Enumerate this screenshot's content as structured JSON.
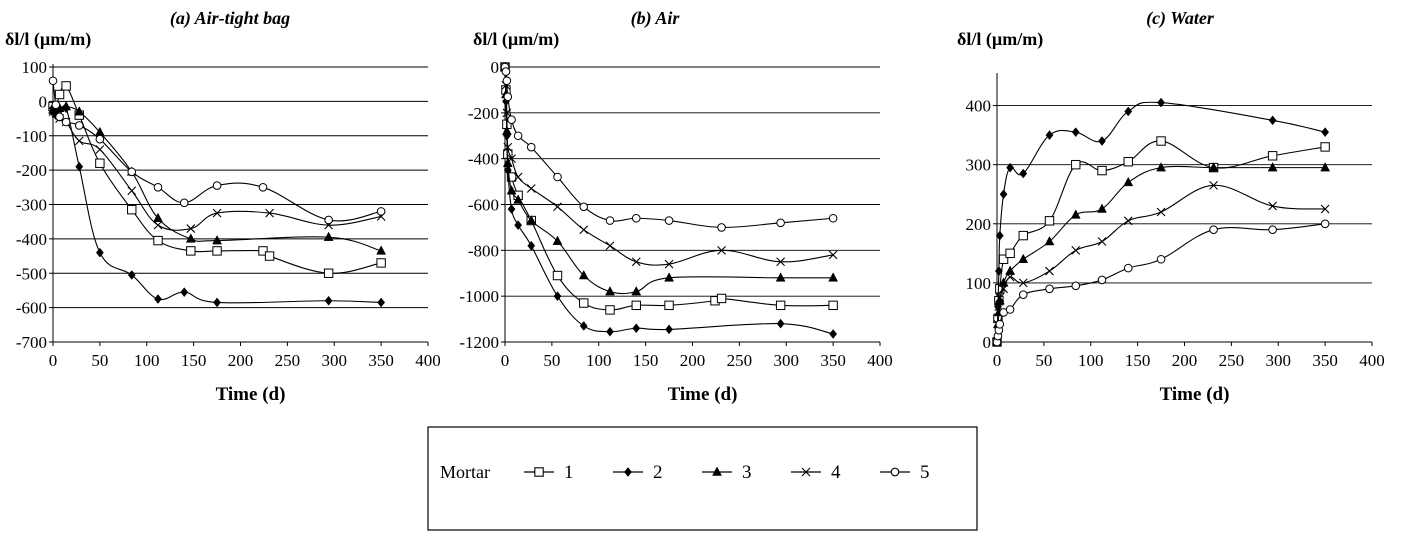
{
  "chart_data": [
    {
      "type": "line",
      "title": "(a) Air-tight bag",
      "ylabel": "δl/l (µm/m)",
      "xlabel": "Time (d)",
      "xlim": [
        0,
        400
      ],
      "ylim": [
        -700,
        100
      ],
      "xticks": [
        0,
        50,
        100,
        150,
        200,
        250,
        300,
        350,
        400
      ],
      "yticks": [
        -700,
        -600,
        -500,
        -400,
        -300,
        -200,
        -100,
        0,
        100
      ],
      "grid": "horizontal",
      "series": [
        {
          "name": "1",
          "marker": "square",
          "x": [
            0,
            3,
            7,
            14,
            28,
            50,
            84,
            112,
            147,
            175,
            224,
            231,
            294,
            350
          ],
          "y": [
            -15,
            -25,
            20,
            45,
            -40,
            -180,
            -315,
            -405,
            -435,
            -435,
            -435,
            -450,
            -500,
            -470
          ]
        },
        {
          "name": "2",
          "marker": "diamond",
          "x": [
            0,
            3,
            7,
            14,
            28,
            50,
            84,
            112,
            140,
            175,
            294,
            350
          ],
          "y": [
            -20,
            -40,
            -45,
            -20,
            -190,
            -440,
            -505,
            -575,
            -555,
            -585,
            -580,
            -585
          ]
        },
        {
          "name": "3",
          "marker": "triangle",
          "x": [
            0,
            3,
            7,
            14,
            28,
            50,
            84,
            112,
            147,
            175,
            294,
            350
          ],
          "y": [
            -25,
            -30,
            -20,
            -15,
            -30,
            -90,
            -205,
            -340,
            -400,
            -405,
            -395,
            -435
          ]
        },
        {
          "name": "4",
          "marker": "cross",
          "x": [
            0,
            3,
            7,
            14,
            28,
            50,
            84,
            112,
            147,
            175,
            231,
            294,
            350
          ],
          "y": [
            -30,
            -35,
            -50,
            -60,
            -115,
            -140,
            -260,
            -360,
            -370,
            -325,
            -325,
            -360,
            -335
          ]
        },
        {
          "name": "5",
          "marker": "circle",
          "x": [
            0,
            3,
            7,
            14,
            28,
            50,
            84,
            112,
            140,
            175,
            224,
            294,
            350
          ],
          "y": [
            60,
            -10,
            -45,
            -60,
            -70,
            -110,
            -205,
            -250,
            -295,
            -245,
            -250,
            -345,
            -320
          ]
        }
      ]
    },
    {
      "type": "line",
      "title": "(b) Air",
      "ylabel": "δl/l (µm/m)",
      "xlabel": "Time (d)",
      "xlim": [
        0,
        400
      ],
      "ylim": [
        -1200,
        0
      ],
      "xticks": [
        0,
        50,
        100,
        150,
        200,
        250,
        300,
        350,
        400
      ],
      "yticks": [
        -1200,
        -1000,
        -800,
        -600,
        -400,
        -200,
        0
      ],
      "grid": "horizontal",
      "series": [
        {
          "name": "1",
          "marker": "square",
          "x": [
            0,
            1,
            2,
            3,
            7,
            14,
            28,
            56,
            84,
            112,
            140,
            175,
            224,
            231,
            294,
            350
          ],
          "y": [
            0,
            -100,
            -250,
            -380,
            -480,
            -560,
            -670,
            -910,
            -1030,
            -1060,
            -1040,
            -1040,
            -1020,
            -1010,
            -1040,
            -1040
          ]
        },
        {
          "name": "2",
          "marker": "diamond",
          "x": [
            0,
            1,
            2,
            3,
            7,
            14,
            28,
            56,
            84,
            112,
            140,
            175,
            294,
            350
          ],
          "y": [
            0,
            -150,
            -300,
            -450,
            -620,
            -690,
            -780,
            -1000,
            -1130,
            -1155,
            -1140,
            -1145,
            -1120,
            -1165
          ]
        },
        {
          "name": "3",
          "marker": "triangle",
          "x": [
            0,
            1,
            2,
            3,
            7,
            14,
            28,
            56,
            84,
            112,
            140,
            175,
            294,
            350
          ],
          "y": [
            0,
            -120,
            -280,
            -420,
            -540,
            -580,
            -670,
            -760,
            -910,
            -980,
            -980,
            -920,
            -920,
            -920
          ]
        },
        {
          "name": "4",
          "marker": "cross",
          "x": [
            0,
            1,
            2,
            3,
            7,
            14,
            28,
            56,
            84,
            112,
            140,
            175,
            231,
            294,
            350
          ],
          "y": [
            0,
            -80,
            -200,
            -350,
            -400,
            -480,
            -530,
            -610,
            -710,
            -780,
            -850,
            -860,
            -800,
            -850,
            -820
          ]
        },
        {
          "name": "5",
          "marker": "circle",
          "x": [
            0,
            1,
            2,
            3,
            7,
            14,
            28,
            56,
            84,
            112,
            140,
            175,
            231,
            294,
            350
          ],
          "y": [
            0,
            -20,
            -60,
            -130,
            -230,
            -300,
            -350,
            -480,
            -610,
            -670,
            -660,
            -670,
            -700,
            -680,
            -660
          ]
        }
      ]
    },
    {
      "type": "line",
      "title": "(c) Water",
      "ylabel": "δl/l (µm/m)",
      "xlabel": "Time (d)",
      "xlim": [
        0,
        400
      ],
      "ylim": [
        0,
        450
      ],
      "xticks": [
        0,
        50,
        100,
        150,
        200,
        250,
        300,
        350,
        400
      ],
      "yticks": [
        0,
        100,
        200,
        300,
        400
      ],
      "grid": "horizontal",
      "series": [
        {
          "name": "1",
          "marker": "square",
          "x": [
            0,
            1,
            2,
            3,
            7,
            14,
            28,
            56,
            84,
            112,
            140,
            175,
            231,
            294,
            350
          ],
          "y": [
            0,
            40,
            70,
            90,
            140,
            150,
            180,
            205,
            300,
            290,
            305,
            340,
            295,
            315,
            330
          ]
        },
        {
          "name": "2",
          "marker": "diamond",
          "x": [
            0,
            1,
            2,
            3,
            7,
            14,
            28,
            56,
            84,
            112,
            140,
            175,
            294,
            350
          ],
          "y": [
            0,
            60,
            120,
            180,
            250,
            295,
            285,
            350,
            355,
            340,
            390,
            405,
            375,
            355
          ]
        },
        {
          "name": "3",
          "marker": "triangle",
          "x": [
            0,
            1,
            2,
            3,
            7,
            14,
            28,
            56,
            84,
            112,
            140,
            175,
            231,
            294,
            350
          ],
          "y": [
            0,
            30,
            50,
            70,
            100,
            120,
            140,
            170,
            215,
            225,
            270,
            295,
            295,
            295,
            295
          ]
        },
        {
          "name": "4",
          "marker": "cross",
          "x": [
            0,
            1,
            2,
            3,
            7,
            14,
            28,
            56,
            84,
            112,
            140,
            175,
            231,
            294,
            350
          ],
          "y": [
            0,
            30,
            60,
            75,
            90,
            110,
            100,
            120,
            155,
            170,
            205,
            220,
            265,
            230,
            225
          ]
        },
        {
          "name": "5",
          "marker": "circle",
          "x": [
            0,
            1,
            2,
            3,
            7,
            14,
            28,
            56,
            84,
            112,
            140,
            175,
            231,
            294,
            350
          ],
          "y": [
            0,
            10,
            20,
            30,
            50,
            55,
            80,
            90,
            95,
            105,
            125,
            140,
            190,
            190,
            200
          ]
        }
      ]
    }
  ],
  "legend": {
    "title": "Mortar",
    "placement": "bottom-center",
    "items": [
      {
        "label": "1",
        "marker": "square"
      },
      {
        "label": "2",
        "marker": "diamond"
      },
      {
        "label": "3",
        "marker": "triangle"
      },
      {
        "label": "4",
        "marker": "cross"
      },
      {
        "label": "5",
        "marker": "circle"
      }
    ]
  },
  "colors": {
    "line": "#000000",
    "grid": "#000000",
    "background": "#ffffff"
  }
}
